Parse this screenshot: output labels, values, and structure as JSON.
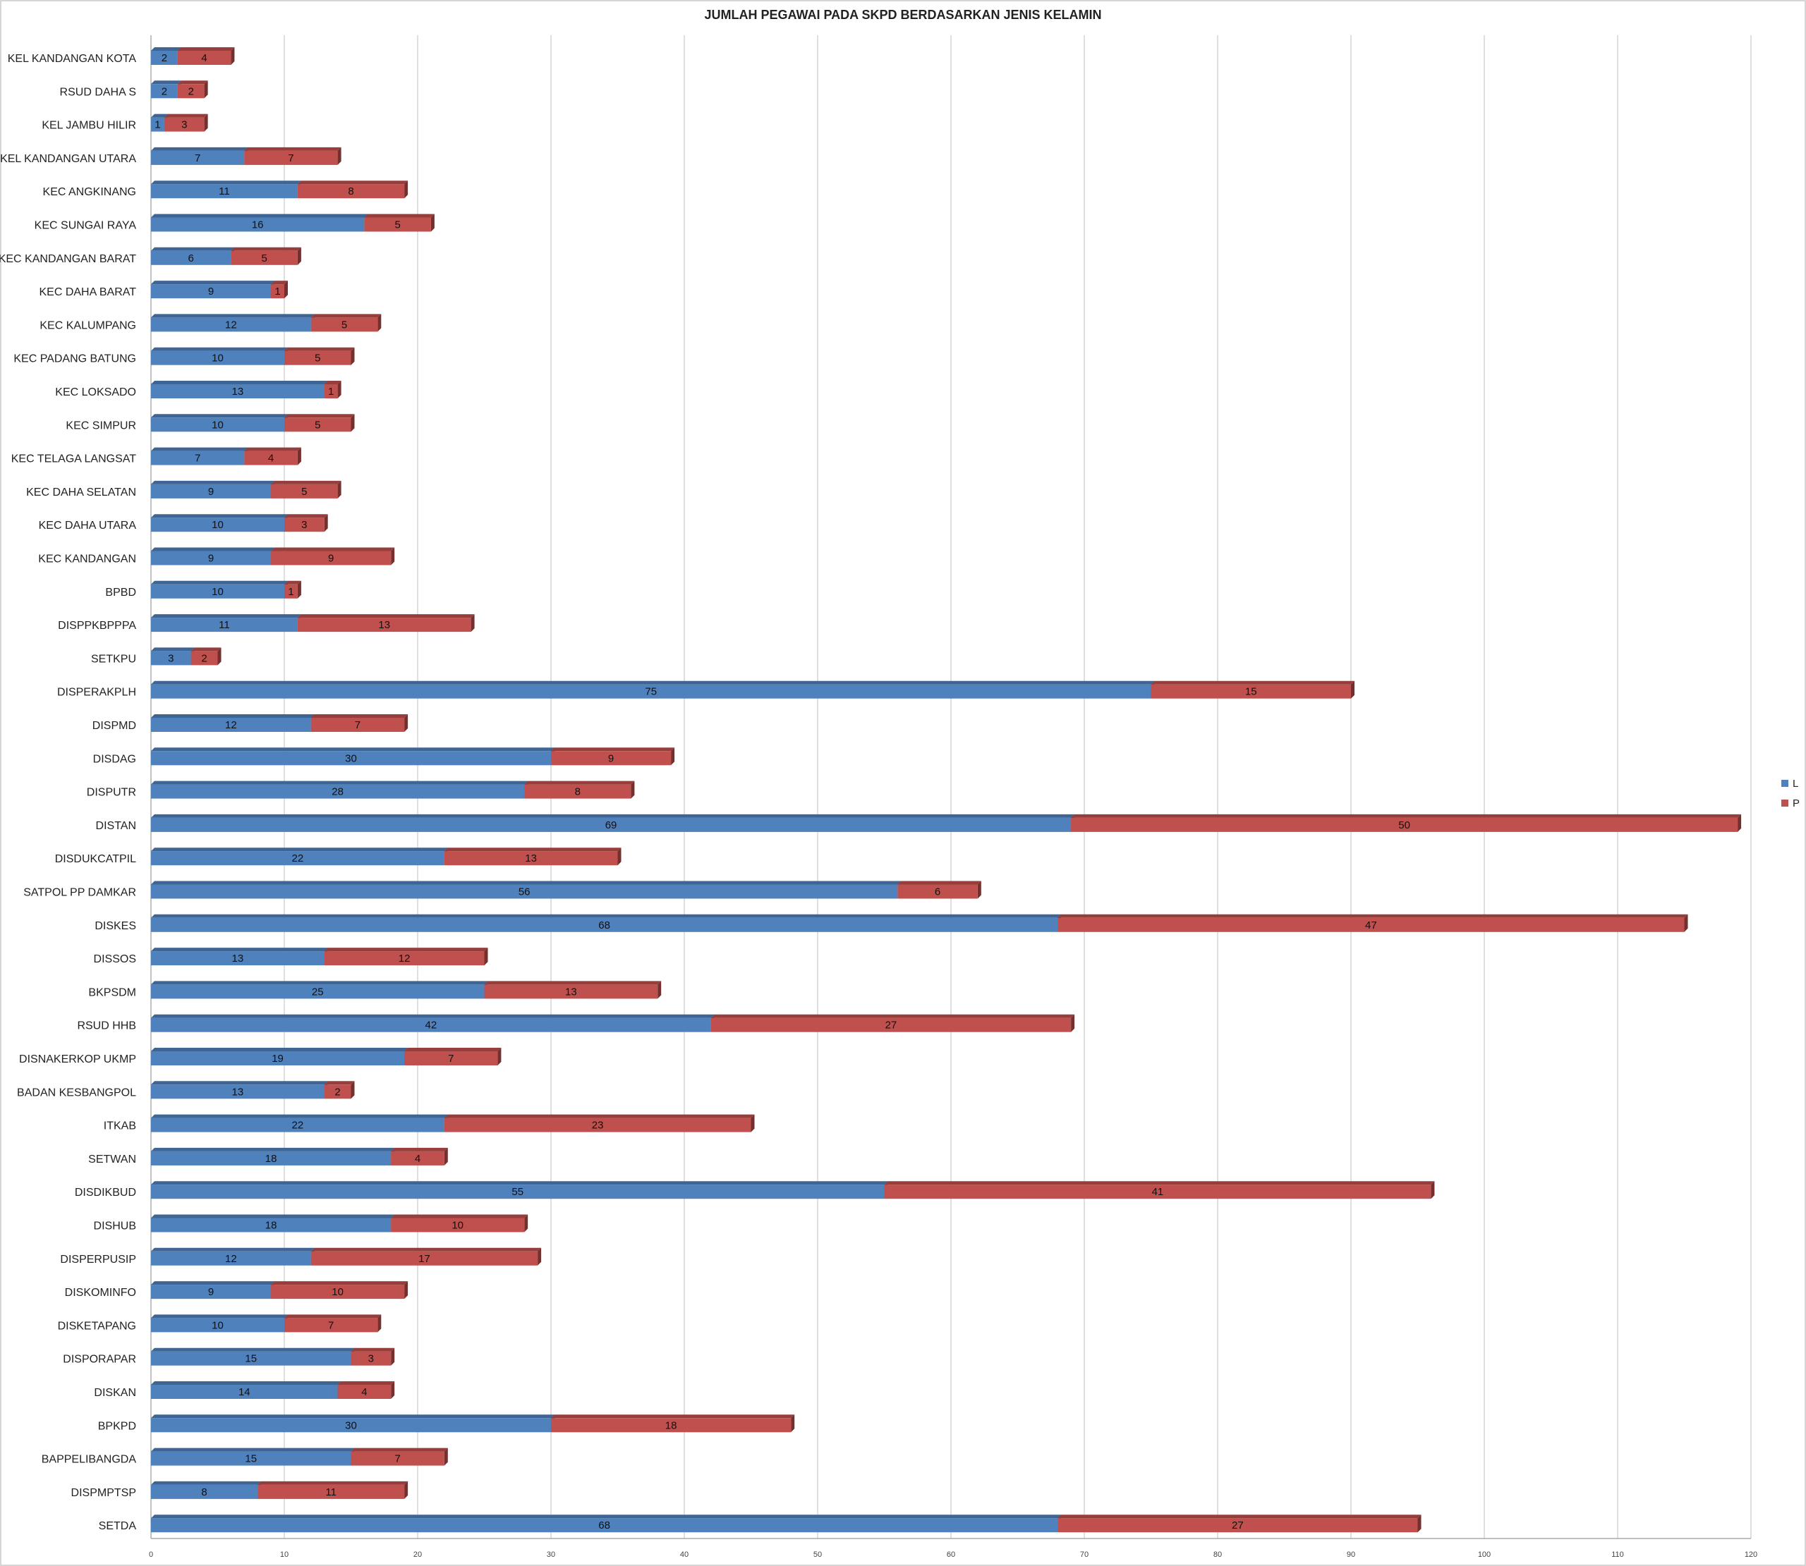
{
  "chart_data": {
    "type": "bar",
    "orientation": "horizontal",
    "stacked": true,
    "title": "JUMLAH PEGAWAI PADA SKPD BERDASARKAN JENIS KELAMIN",
    "xlim": [
      0,
      120
    ],
    "x_ticks": [
      "0",
      "10",
      "20",
      "30",
      "40",
      "50",
      "60",
      "70",
      "80",
      "90",
      "100",
      "110",
      "120"
    ],
    "grid": true,
    "legend_position": "right",
    "categories": [
      "KEL KANDANGAN KOTA",
      "RSUD DAHA S",
      "KEL JAMBU HILIR",
      "KEL KANDANGAN UTARA",
      "KEC ANGKINANG",
      "KEC SUNGAI RAYA",
      "KEC KANDANGAN BARAT",
      "KEC DAHA BARAT",
      "KEC KALUMPANG",
      "KEC PADANG BATUNG",
      "KEC LOKSADO",
      "KEC SIMPUR",
      "KEC TELAGA LANGSAT",
      "KEC DAHA SELATAN",
      "KEC DAHA UTARA",
      "KEC KANDANGAN",
      "BPBD",
      "DISPPKBPPPA",
      "SETKPU",
      "DISPERAKPLH",
      "DISPMD",
      "DISDAG",
      "DISPUTR",
      "DISTAN",
      "DISDUKCATPIL",
      "SATPOL PP DAMKAR",
      "DISKES",
      "DISSOS",
      "BKPSDM",
      "RSUD HHB",
      "DISNAKERKOP UKMP",
      "BADAN KESBANGPOL",
      "ITKAB",
      "SETWAN",
      "DISDIKBUD",
      "DISHUB",
      "DISPERPUSIP",
      "DISKOMINFO",
      "DISKETAPANG",
      "DISPORAPAR",
      "DISKAN",
      "BPKPD",
      "BAPPELIBANGDA",
      "DISPMPTSP",
      "SETDA"
    ],
    "series": [
      {
        "name": "L",
        "color": "#4F81BD",
        "values": [
          2,
          2,
          1,
          7,
          11,
          16,
          6,
          9,
          12,
          10,
          13,
          10,
          7,
          9,
          10,
          9,
          10,
          11,
          3,
          75,
          12,
          30,
          28,
          69,
          22,
          56,
          68,
          13,
          25,
          42,
          19,
          13,
          22,
          18,
          55,
          18,
          12,
          9,
          10,
          15,
          14,
          30,
          15,
          8,
          68
        ]
      },
      {
        "name": "P",
        "color": "#C0504D",
        "values": [
          4,
          2,
          3,
          7,
          8,
          5,
          5,
          1,
          5,
          5,
          1,
          5,
          4,
          5,
          3,
          9,
          1,
          13,
          2,
          15,
          7,
          9,
          8,
          50,
          13,
          6,
          47,
          12,
          13,
          27,
          7,
          2,
          23,
          4,
          41,
          10,
          17,
          10,
          7,
          3,
          4,
          18,
          7,
          11,
          27
        ]
      }
    ]
  }
}
